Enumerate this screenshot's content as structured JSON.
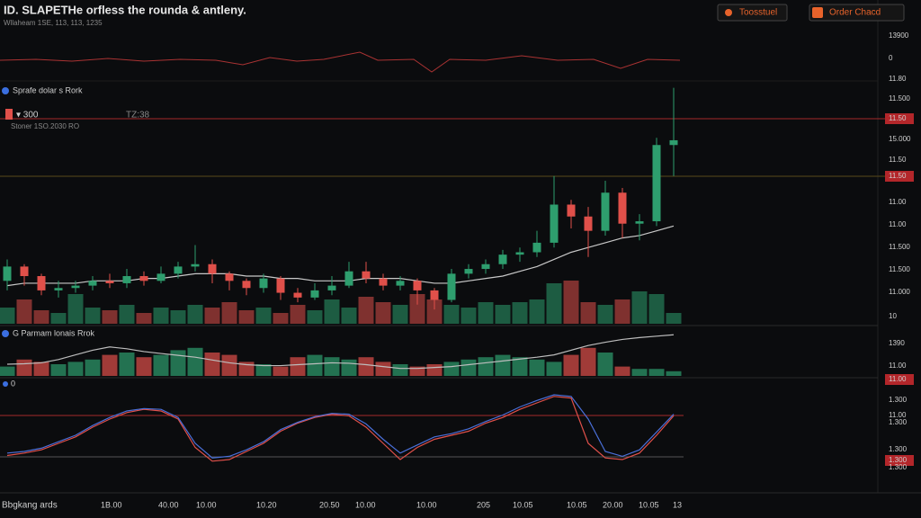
{
  "header": {
    "title": "ID. SLAPETHe orfless the rounda & antleny.",
    "subtitle": "Wllaheam 1SE, 113, 113, 1235"
  },
  "toolbar": {
    "buttons": [
      "Toosstuel",
      "Order Chacd"
    ]
  },
  "panels": {
    "price": {
      "label": "Sprafe dolar s Rork",
      "interval": "▾ 300",
      "time": "TZ:38",
      "info": "Stoner 1SO.2030 RO"
    },
    "volume": {
      "label": "G Parmam lonais Rrok"
    },
    "oscillator": {
      "label": "0"
    }
  },
  "price_axis": [
    "13900",
    "0",
    "11.80",
    "11.500",
    "11.50",
    "15.000",
    "11.50",
    "11.50",
    "11.00",
    "11.00",
    "11.500",
    "11.500",
    "11.000",
    "10"
  ],
  "volume_axis": [
    "1390",
    "11.00",
    "11.00"
  ],
  "oscillator_axis": [
    "1.300",
    "11.00",
    "1.300",
    "1.300",
    "1.300",
    "1.300"
  ],
  "time_axis": [
    "1B.00",
    "40.00",
    "10.00",
    "10.20",
    "20.50",
    "10.00",
    "10.00",
    "205",
    "10.05",
    "10.05",
    "20.00",
    "10.05",
    "13"
  ],
  "footer": {
    "label": "Bbgkang ards"
  },
  "chart_data": {
    "type": "candlestick",
    "up_color": "#2e9e6e",
    "down_color": "#e0504a",
    "ylim": [
      0,
      100
    ],
    "volume_ylim": [
      0,
      100
    ],
    "ma_color": "#c8c8c8",
    "open": [
      18,
      24,
      20,
      14,
      15,
      16,
      18,
      17,
      20,
      18,
      21,
      24,
      25,
      21,
      18,
      15,
      19,
      13,
      11,
      14,
      16,
      22,
      19,
      16,
      18,
      14,
      10,
      21,
      23,
      25,
      29,
      30,
      34,
      50,
      45,
      39,
      55,
      42,
      43,
      75
    ],
    "high": [
      27,
      25,
      21,
      18,
      18,
      20,
      21,
      23,
      22,
      24,
      26,
      33,
      27,
      22,
      19,
      21,
      20,
      15,
      17,
      20,
      26,
      26,
      21,
      20,
      19,
      15,
      23,
      25,
      27,
      31,
      32,
      39,
      62,
      52,
      49,
      60,
      57,
      46,
      78,
      99
    ],
    "low": [
      14,
      16,
      12,
      11,
      13,
      14,
      15,
      15,
      16,
      17,
      19,
      22,
      17,
      14,
      12,
      13,
      10,
      9,
      10,
      12,
      15,
      17,
      14,
      14,
      8,
      6,
      9,
      19,
      21,
      23,
      26,
      28,
      32,
      40,
      28,
      37,
      36,
      35,
      41,
      62
    ],
    "close": [
      24,
      20,
      14,
      15,
      16,
      18,
      17,
      20,
      18,
      21,
      24,
      25,
      21,
      18,
      15,
      19,
      13,
      11,
      14,
      16,
      22,
      19,
      16,
      18,
      14,
      10,
      21,
      23,
      25,
      29,
      30,
      34,
      50,
      45,
      39,
      55,
      42,
      43,
      75,
      77
    ],
    "volume": [
      30,
      45,
      25,
      20,
      55,
      30,
      25,
      35,
      20,
      30,
      25,
      35,
      30,
      40,
      25,
      30,
      20,
      35,
      25,
      45,
      30,
      50,
      40,
      35,
      55,
      45,
      35,
      30,
      40,
      35,
      40,
      45,
      75,
      80,
      40,
      35,
      45,
      60,
      55,
      20
    ],
    "ma": [
      16,
      17,
      17,
      17,
      17,
      18,
      18,
      18,
      19,
      19,
      20,
      21,
      21,
      21,
      20,
      20,
      19,
      19,
      18,
      18,
      18,
      19,
      19,
      19,
      18,
      17,
      17,
      18,
      19,
      20,
      22,
      24,
      27,
      30,
      32,
      34,
      36,
      37,
      39,
      41
    ],
    "panel2": {
      "ylim": [
        0,
        100
      ],
      "bars": [
        20,
        35,
        30,
        25,
        30,
        35,
        45,
        50,
        40,
        45,
        55,
        60,
        50,
        45,
        30,
        25,
        20,
        40,
        45,
        40,
        35,
        40,
        30,
        25,
        20,
        25,
        30,
        35,
        40,
        45,
        40,
        35,
        30,
        45,
        60,
        50,
        20,
        15,
        15,
        10
      ],
      "line": [
        25,
        26,
        28,
        35,
        45,
        55,
        62,
        58,
        52,
        48,
        44,
        40,
        34,
        28,
        24,
        22,
        22,
        24,
        26,
        28,
        27,
        24,
        20,
        16,
        16,
        18,
        20,
        24,
        28,
        32,
        36,
        40,
        45,
        55,
        65,
        72,
        78,
        82,
        85,
        88
      ],
      "line_color": "#bdbdbd"
    },
    "panel3": {
      "ylim": [
        0,
        100
      ],
      "series": [
        {
          "color": "#e0504a",
          "values": [
            15,
            18,
            22,
            30,
            38,
            50,
            60,
            68,
            72,
            70,
            60,
            25,
            8,
            10,
            20,
            30,
            45,
            55,
            62,
            66,
            64,
            50,
            30,
            10,
            25,
            35,
            40,
            45,
            55,
            62,
            72,
            80,
            88,
            86,
            30,
            12,
            10,
            18,
            40,
            64
          ]
        },
        {
          "color": "#4a6fd8",
          "values": [
            18,
            20,
            24,
            32,
            40,
            52,
            62,
            70,
            73,
            72,
            62,
            30,
            12,
            14,
            22,
            32,
            47,
            56,
            63,
            67,
            66,
            54,
            35,
            18,
            28,
            38,
            42,
            48,
            57,
            65,
            75,
            83,
            90,
            88,
            60,
            20,
            14,
            22,
            44,
            66
          ]
        }
      ]
    }
  }
}
